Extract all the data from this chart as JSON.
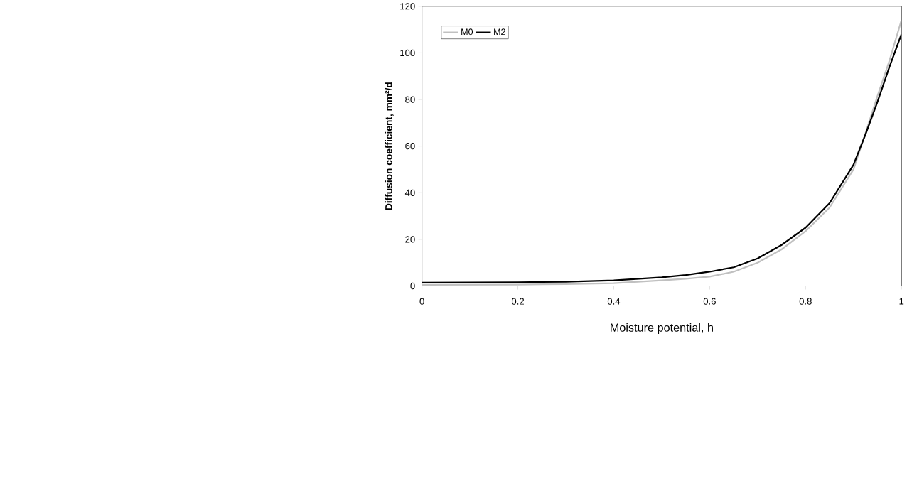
{
  "chart_data": {
    "type": "line",
    "xlabel": "Moisture potential, h",
    "ylabel": "Diffusion coefficient, mm²/d",
    "x": [
      0,
      0.2,
      0.3,
      0.4,
      0.5,
      0.55,
      0.6,
      0.65,
      0.7,
      0.75,
      0.8,
      0.85,
      0.9,
      0.925,
      0.95,
      0.975,
      1.0
    ],
    "series": [
      {
        "name": "M0",
        "color": "#c0c0c0",
        "values": [
          0.5,
          0.6,
          0.8,
          1.2,
          2.4,
          3.1,
          4.0,
          6.1,
          10,
          15.7,
          23.5,
          33.6,
          50,
          65.5,
          81.5,
          96.7,
          114
        ]
      },
      {
        "name": "M2",
        "color": "#000000",
        "values": [
          1.4,
          1.6,
          1.8,
          2.4,
          3.7,
          4.7,
          6.1,
          8,
          11.8,
          17.6,
          25,
          35.5,
          52,
          65,
          79,
          94,
          108
        ]
      }
    ],
    "xlim": [
      0,
      1
    ],
    "ylim": [
      0,
      120
    ],
    "xticks": [
      0,
      0.2,
      0.4,
      0.6,
      0.8,
      1
    ],
    "yticks": [
      0,
      20,
      40,
      60,
      80,
      100,
      120
    ],
    "grid": false,
    "legend": "top left",
    "line_style": "solid",
    "marker": "none"
  }
}
